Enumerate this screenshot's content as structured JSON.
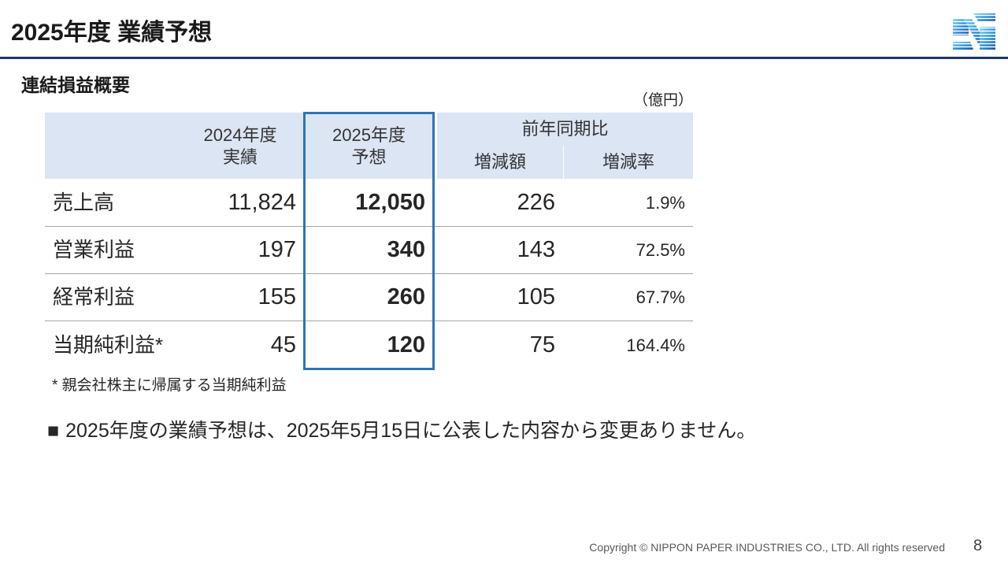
{
  "slide": {
    "title": "2025年度 業績予想",
    "page_number": "8"
  },
  "colors": {
    "accent_rule": "#1f3864",
    "highlight_border": "#2e75b6",
    "header_fill": "#dbe5f3"
  },
  "logo": {
    "icon": "nippon-paper-logo-icon"
  },
  "section": {
    "title": "連結損益概要",
    "unit": "（億円）"
  },
  "table": {
    "header": {
      "prev_line1": "2024年度",
      "prev_line2": "実績",
      "curr_line1": "2025年度",
      "curr_line2": "予想",
      "yoy": "前年同期比",
      "diff": "増減額",
      "rate": "増減率"
    },
    "rows": [
      {
        "label": "売上高",
        "prev": "11,824",
        "curr": "12,050",
        "diff": "226",
        "rate": "1.9%"
      },
      {
        "label": "営業利益",
        "prev": "197",
        "curr": "340",
        "diff": "143",
        "rate": "72.5%"
      },
      {
        "label": "経常利益",
        "prev": "155",
        "curr": "260",
        "diff": "105",
        "rate": "67.7%"
      },
      {
        "label": "当期純利益*",
        "prev": "45",
        "curr": "120",
        "diff": "75",
        "rate": "164.4%"
      }
    ]
  },
  "footnote": "* 親会社株主に帰属する当期純利益",
  "bullet": {
    "marker": "■",
    "text": "2025年度の業績予想は、2025年5月15日に公表した内容から変更ありません。"
  },
  "footer": {
    "copyright": "Copyright © NIPPON PAPER INDUSTRIES CO., LTD. All rights reserved"
  }
}
